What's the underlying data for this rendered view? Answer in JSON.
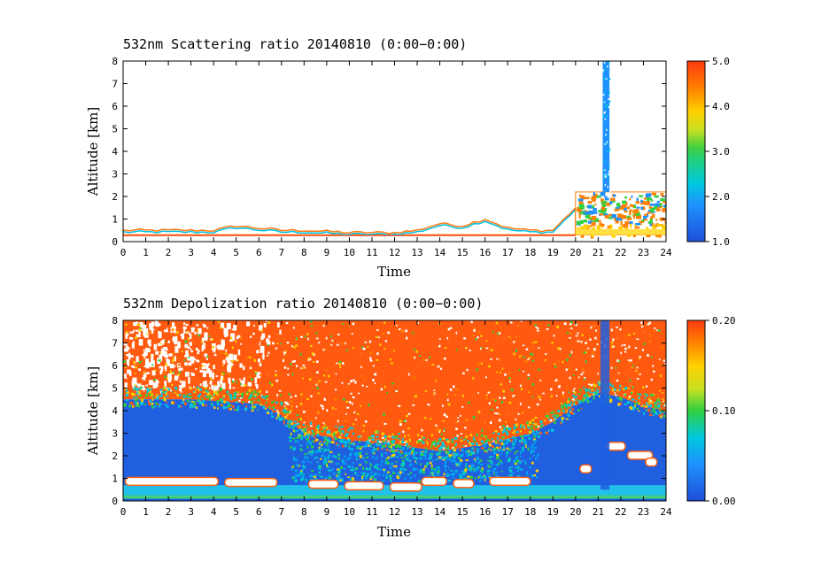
{
  "chart_data": [
    {
      "type": "heatmap",
      "title": "532nm Scattering ratio  20140810 (0:00−0:00)",
      "xlabel": "Time",
      "ylabel": "Altitude [km]",
      "xlim": [
        0,
        24
      ],
      "ylim": [
        0,
        8
      ],
      "x_ticks": [
        0,
        1,
        2,
        3,
        4,
        5,
        6,
        7,
        8,
        9,
        10,
        11,
        12,
        13,
        14,
        15,
        16,
        17,
        18,
        19,
        20,
        21,
        22,
        23,
        24
      ],
      "y_ticks": [
        0,
        1,
        2,
        3,
        4,
        5,
        6,
        7,
        8
      ],
      "colorbar": {
        "range": [
          1.0,
          5.0
        ],
        "tick_labels": [
          "1.0",
          "2.0",
          "3.0",
          "4.0",
          "5.0"
        ]
      },
      "features": [
        {
          "name": "boundary layer top",
          "time": [
            0,
            4,
            5,
            6,
            7,
            8,
            10,
            12,
            13,
            14,
            15,
            16,
            17,
            18,
            19,
            20
          ],
          "altitude_km": [
            0.5,
            0.5,
            0.7,
            0.6,
            0.5,
            0.5,
            0.4,
            0.4,
            0.5,
            0.8,
            0.7,
            1.0,
            0.6,
            0.5,
            0.5,
            1.5
          ]
        },
        {
          "name": "column feature",
          "time_range": [
            21.2,
            21.5
          ],
          "altitude_range_km": [
            2.2,
            8.0
          ]
        },
        {
          "name": "high-ratio region",
          "time_range": [
            20,
            24
          ],
          "altitude_range_km": [
            0.3,
            2.2
          ]
        }
      ]
    },
    {
      "type": "heatmap",
      "title": "532nm Depolization ratio  20140810 (0:00−0:00)",
      "xlabel": "Time",
      "ylabel": "Altitude [km]",
      "xlim": [
        0,
        24
      ],
      "ylim": [
        0,
        8
      ],
      "x_ticks": [
        0,
        1,
        2,
        3,
        4,
        5,
        6,
        7,
        8,
        9,
        10,
        11,
        12,
        13,
        14,
        15,
        16,
        17,
        18,
        19,
        20,
        21,
        22,
        23,
        24
      ],
      "y_ticks": [
        0,
        1,
        2,
        3,
        4,
        5,
        6,
        7,
        8
      ],
      "colorbar": {
        "range": [
          0.0,
          0.2
        ],
        "tick_labels": [
          "0.00",
          "0.10",
          "0.20"
        ]
      },
      "features": [
        {
          "name": "low-ratio layer top",
          "time": [
            0,
            3,
            6,
            7,
            8,
            10,
            12,
            14,
            16,
            18,
            19,
            20,
            21,
            22,
            23,
            24
          ],
          "altitude_km": [
            4.5,
            4.5,
            4.3,
            3.8,
            3.0,
            2.7,
            2.5,
            2.2,
            2.5,
            3.0,
            3.5,
            4.3,
            4.8,
            4.6,
            4.2,
            4.0
          ]
        },
        {
          "name": "surface layer",
          "altitude_range_km": [
            0.2,
            0.9
          ]
        },
        {
          "name": "column feature",
          "time_range": [
            21.1,
            21.5
          ],
          "altitude_range_km": [
            0.5,
            8.0
          ]
        }
      ]
    }
  ]
}
